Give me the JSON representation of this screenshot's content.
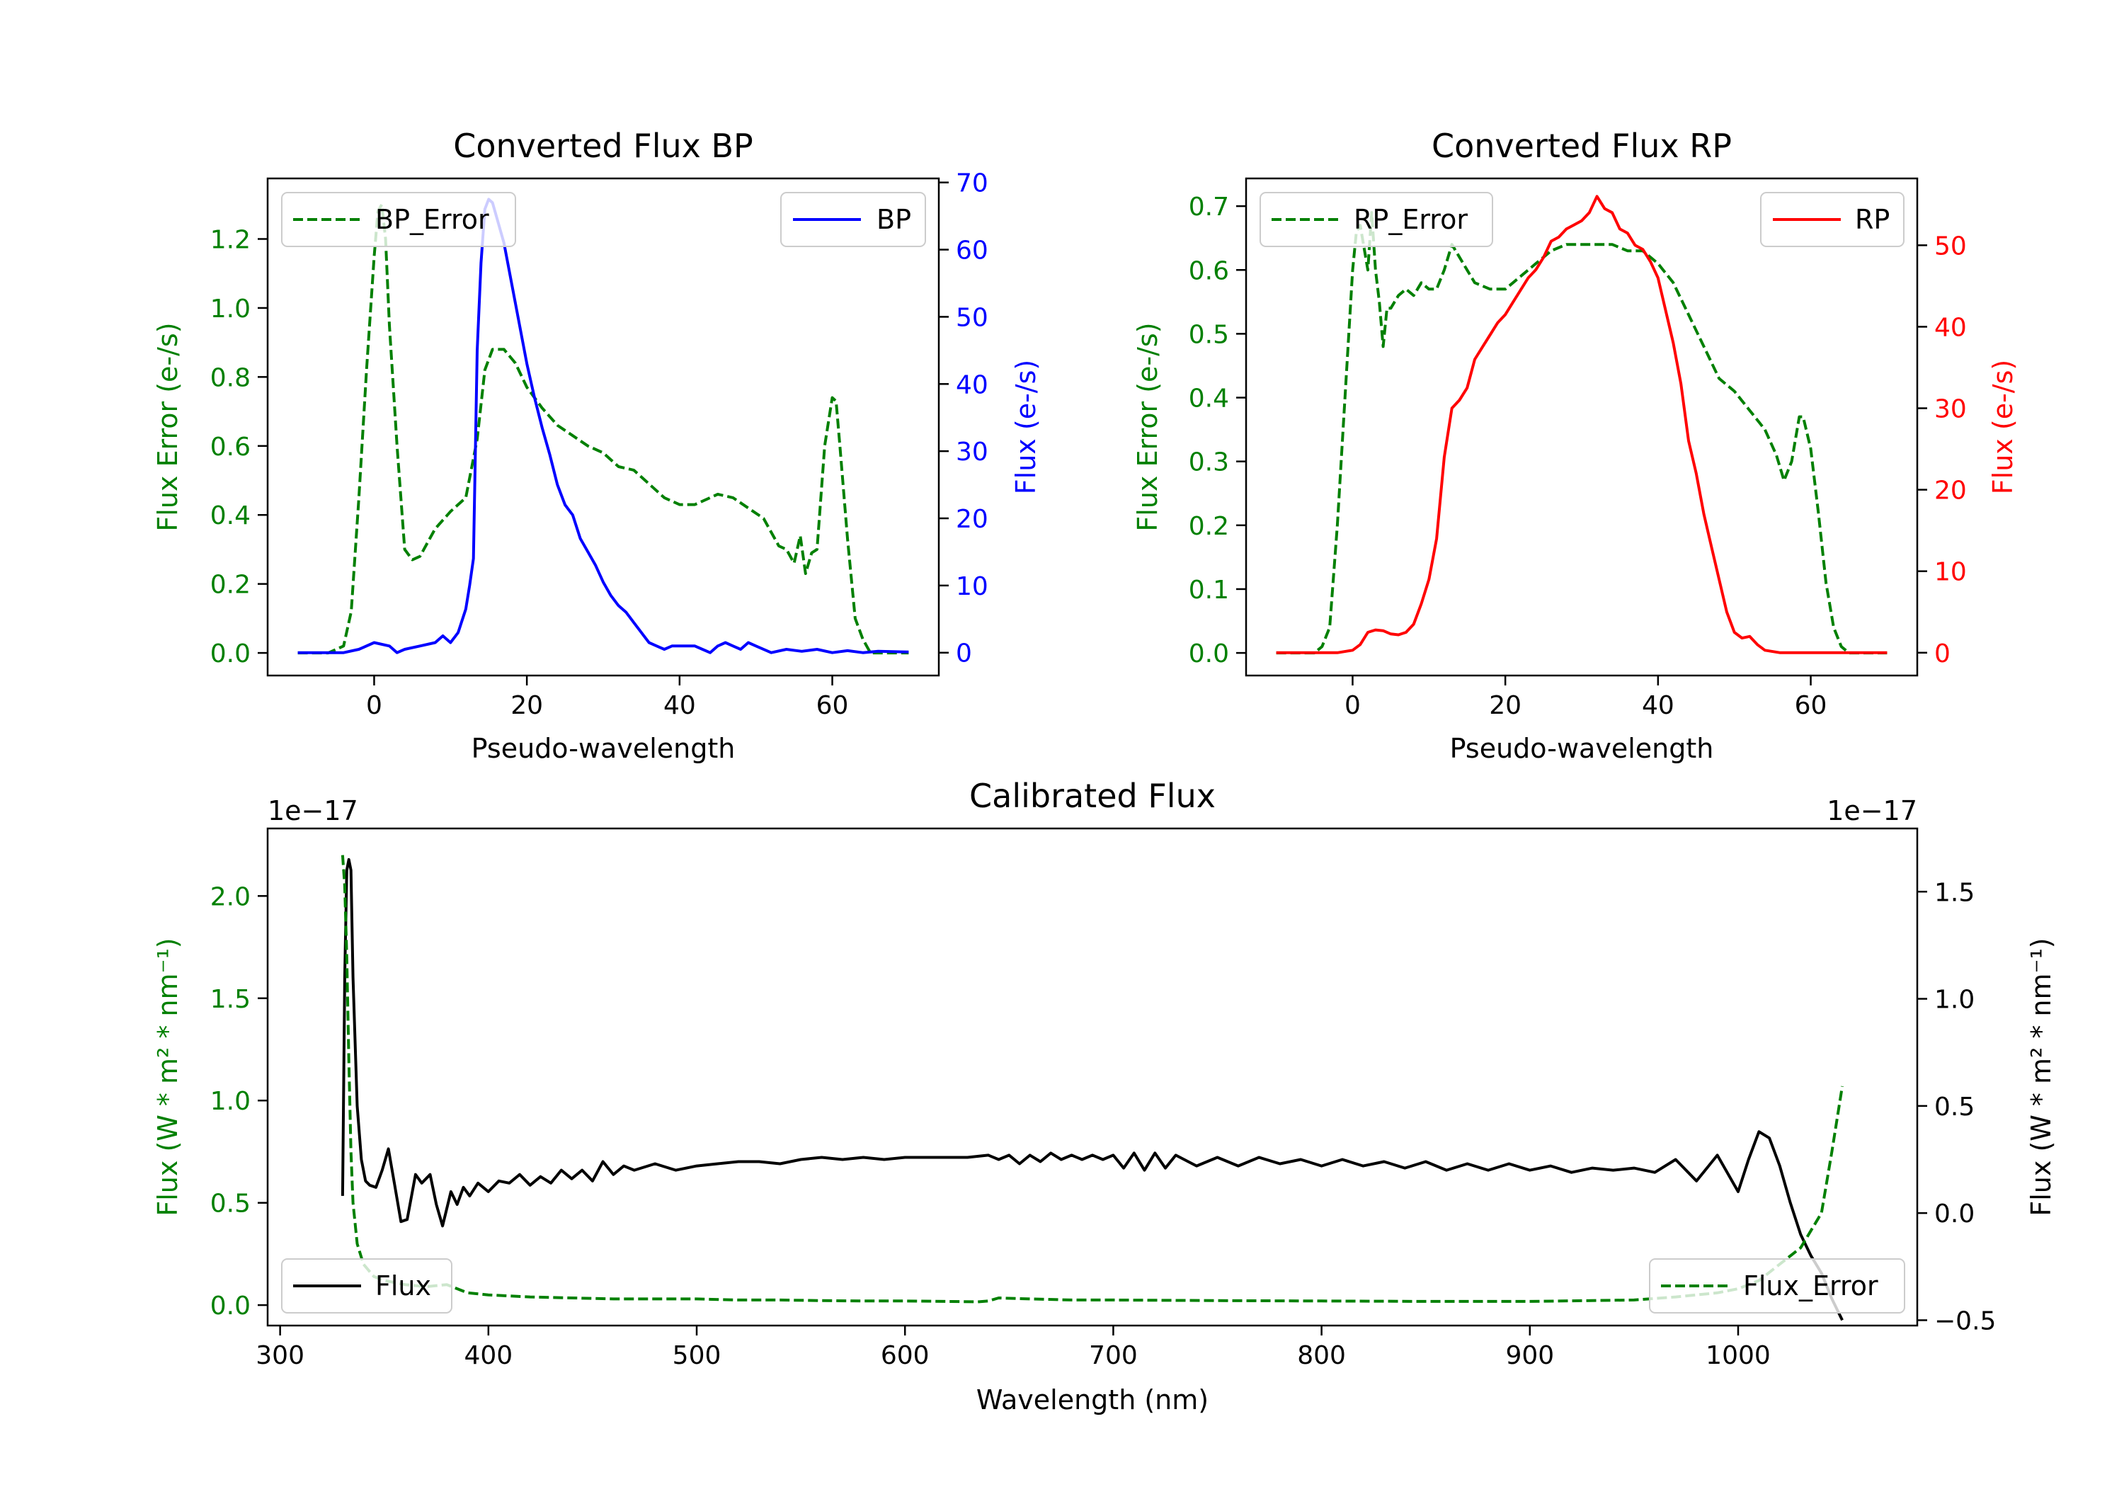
{
  "colors": {
    "bp": "#0000ff",
    "rp": "#ff0000",
    "error": "#008000",
    "flux": "#000000",
    "axis": "#000000"
  },
  "chart_data": [
    {
      "id": "bp",
      "type": "line",
      "title": "Converted Flux BP",
      "xlabel": "Pseudo-wavelength",
      "ylabel_left": "Flux Error (e-/s)",
      "ylabel_right": "Flux (e-/s)",
      "xlim": [
        -13.95,
        73.95
      ],
      "ylim_left": [
        -0.0655,
        1.3755
      ],
      "ylim_right": [
        -3.4,
        70.6
      ],
      "xticks": [
        0,
        20,
        40,
        60
      ],
      "yticks_left": [
        0.0,
        0.2,
        0.4,
        0.6,
        0.8,
        1.0,
        1.2
      ],
      "yticks_right": [
        0,
        10,
        20,
        30,
        40,
        50,
        60,
        70
      ],
      "series": [
        {
          "name": "BP_Error",
          "axis": "left",
          "style": "dashed",
          "color": "#008000",
          "x": [
            -10,
            -6,
            -4,
            -3,
            -2,
            -1,
            0,
            0.5,
            1,
            1.5,
            2,
            3,
            4,
            5,
            6,
            8,
            10,
            12,
            13.5,
            14.5,
            15.5,
            17,
            18.5,
            20,
            22,
            24,
            26,
            28,
            30,
            32,
            34,
            36,
            38,
            40,
            42,
            44,
            45,
            47,
            49,
            51,
            53,
            54,
            55,
            55.8,
            56.5,
            57.3,
            58,
            59,
            60,
            60.5,
            61,
            62,
            63,
            64,
            65,
            67,
            70
          ],
          "y": [
            0.0,
            0.0,
            0.02,
            0.12,
            0.45,
            0.82,
            1.15,
            1.28,
            1.3,
            1.2,
            0.95,
            0.6,
            0.3,
            0.27,
            0.28,
            0.36,
            0.41,
            0.45,
            0.62,
            0.82,
            0.88,
            0.88,
            0.84,
            0.77,
            0.71,
            0.66,
            0.63,
            0.6,
            0.58,
            0.54,
            0.53,
            0.49,
            0.45,
            0.43,
            0.43,
            0.45,
            0.46,
            0.45,
            0.42,
            0.39,
            0.31,
            0.3,
            0.26,
            0.34,
            0.23,
            0.29,
            0.3,
            0.6,
            0.74,
            0.73,
            0.6,
            0.33,
            0.1,
            0.04,
            0.0,
            0.0,
            0.0
          ]
        },
        {
          "name": "BP",
          "axis": "right",
          "style": "solid",
          "color": "#0000ff",
          "x": [
            -10,
            -4,
            -2,
            0,
            2,
            3,
            4,
            6,
            8,
            9,
            10,
            11,
            12,
            12.5,
            13,
            13.5,
            14,
            14.5,
            15,
            15.5,
            16,
            17,
            18,
            19,
            20,
            21,
            22,
            23,
            24,
            25,
            26,
            27,
            28,
            29,
            30,
            31,
            32,
            33,
            34,
            35,
            36,
            37,
            38,
            39,
            40,
            42,
            43,
            44,
            45,
            46,
            47,
            48,
            49,
            50,
            52,
            54,
            56,
            58,
            60,
            62,
            64,
            66,
            70
          ],
          "y": [
            0,
            0,
            0.5,
            1.5,
            1,
            0,
            0.5,
            1,
            1.5,
            2.5,
            1.5,
            3,
            6.5,
            10,
            14,
            45,
            58,
            66,
            67.5,
            67,
            65,
            61,
            55,
            49,
            43,
            38,
            33.5,
            29.5,
            25,
            22,
            20.5,
            17,
            15,
            13,
            10.5,
            8.5,
            7,
            6,
            4.5,
            3,
            1.5,
            1,
            0.5,
            1,
            1,
            1,
            0.5,
            0,
            1,
            1.5,
            1,
            0.5,
            1.5,
            1,
            0,
            0.5,
            0.2,
            0.5,
            0,
            0.3,
            0,
            0.2,
            0.1
          ]
        }
      ],
      "legend": [
        {
          "label": "BP_Error",
          "position": "upper-left"
        },
        {
          "label": "BP",
          "position": "upper-right"
        }
      ]
    },
    {
      "id": "rp",
      "type": "line",
      "title": "Converted Flux RP",
      "xlabel": "Pseudo-wavelength",
      "ylabel_left": "Flux Error (e-/s)",
      "ylabel_right": "Flux (e-/s)",
      "xlim": [
        -13.95,
        73.95
      ],
      "ylim_left": [
        -0.0354,
        0.7434
      ],
      "ylim_right": [
        -2.8,
        58.2
      ],
      "xticks": [
        0,
        20,
        40,
        60
      ],
      "yticks_left": [
        0.0,
        0.1,
        0.2,
        0.3,
        0.4,
        0.5,
        0.6,
        0.7
      ],
      "yticks_right": [
        0,
        10,
        20,
        30,
        40,
        50
      ],
      "series": [
        {
          "name": "RP_Error",
          "axis": "left",
          "style": "dashed",
          "color": "#008000",
          "x": [
            -10,
            -5,
            -4,
            -3,
            -2,
            -1,
            0,
            0.5,
            1,
            2,
            2.5,
            3,
            3.5,
            4,
            4.5,
            5,
            6,
            7,
            8,
            9,
            10,
            11,
            12,
            13,
            14,
            15,
            16,
            18,
            20,
            22,
            24,
            26,
            28,
            30,
            32,
            34,
            36,
            38,
            40,
            42,
            44,
            46,
            48,
            50,
            52,
            54,
            55.5,
            56.5,
            57.5,
            58.5,
            59,
            60,
            61,
            62,
            63,
            64,
            65,
            67,
            70
          ],
          "y": [
            0.0,
            0.0,
            0.01,
            0.04,
            0.2,
            0.4,
            0.6,
            0.66,
            0.67,
            0.6,
            0.69,
            0.6,
            0.55,
            0.48,
            0.54,
            0.54,
            0.56,
            0.57,
            0.56,
            0.58,
            0.57,
            0.57,
            0.6,
            0.64,
            0.62,
            0.6,
            0.58,
            0.57,
            0.57,
            0.59,
            0.61,
            0.63,
            0.64,
            0.64,
            0.64,
            0.64,
            0.63,
            0.63,
            0.61,
            0.58,
            0.53,
            0.48,
            0.43,
            0.41,
            0.38,
            0.35,
            0.31,
            0.27,
            0.3,
            0.37,
            0.37,
            0.32,
            0.22,
            0.11,
            0.04,
            0.01,
            0.0,
            0.0,
            0.0
          ]
        },
        {
          "name": "RP",
          "axis": "right",
          "style": "solid",
          "color": "#ff0000",
          "x": [
            -10,
            -2,
            0,
            1,
            2,
            3,
            4,
            5,
            6,
            7,
            8,
            9,
            10,
            11,
            12,
            13,
            14,
            15,
            16,
            17,
            18,
            19,
            20,
            21,
            22,
            23,
            24,
            25,
            26,
            27,
            28,
            29,
            30,
            31,
            32,
            33,
            34,
            35,
            36,
            37,
            38,
            39,
            40,
            41,
            42,
            43,
            44,
            45,
            46,
            47,
            48,
            49,
            50,
            51,
            52,
            53,
            54,
            56,
            58,
            60,
            62,
            64,
            66,
            70
          ],
          "y": [
            0,
            0,
            0.3,
            1,
            2.5,
            2.8,
            2.7,
            2.3,
            2.2,
            2.5,
            3.5,
            6,
            9,
            14,
            24,
            30,
            31,
            32.5,
            36,
            37.5,
            39,
            40.5,
            41.5,
            43,
            44.5,
            46,
            47,
            48.5,
            50.5,
            51,
            52,
            52.5,
            53,
            54,
            56,
            54.5,
            54,
            52,
            51.5,
            50,
            49.5,
            48,
            46,
            42,
            38,
            33,
            26,
            22,
            17,
            13,
            9,
            5,
            2.5,
            1.8,
            2,
            1,
            0.3,
            0,
            0,
            0,
            0,
            0,
            0,
            0
          ]
        }
      ],
      "legend": [
        {
          "label": "RP_Error",
          "position": "upper-left"
        },
        {
          "label": "RP",
          "position": "upper-right"
        }
      ]
    },
    {
      "id": "cal",
      "type": "line",
      "title": "Calibrated Flux",
      "xlabel": "Wavelength (nm)",
      "ylabel_left": "Flux (W * m² * nm⁻¹)",
      "ylabel_right": "Flux (W * m² * nm⁻¹)",
      "offset_left": "1e−17",
      "offset_right": "1e−17",
      "xlim": [
        294,
        1086
      ],
      "ylim_left": [
        -0.1,
        2.33
      ],
      "ylim_right": [
        -0.525,
        1.795
      ],
      "xticks": [
        300,
        400,
        500,
        600,
        700,
        800,
        900,
        1000
      ],
      "yticks_left": [
        0.0,
        0.5,
        1.0,
        1.5,
        2.0
      ],
      "yticks_right": [
        -0.5,
        0.0,
        0.5,
        1.0,
        1.5
      ],
      "series": [
        {
          "name": "Flux",
          "axis": "right",
          "style": "solid",
          "color": "#000000",
          "x": [
            330,
            331,
            332,
            333,
            334,
            335,
            337,
            339,
            341,
            343,
            346,
            349,
            352,
            355,
            358,
            361,
            365,
            368,
            372,
            375,
            378,
            382,
            385,
            388,
            391,
            395,
            400,
            405,
            410,
            415,
            420,
            425,
            430,
            435,
            440,
            445,
            450,
            455,
            460,
            465,
            470,
            480,
            490,
            500,
            510,
            520,
            530,
            540,
            550,
            560,
            570,
            580,
            590,
            600,
            610,
            620,
            630,
            640,
            645,
            650,
            655,
            660,
            665,
            670,
            675,
            680,
            685,
            690,
            695,
            700,
            705,
            710,
            715,
            720,
            725,
            730,
            740,
            750,
            760,
            770,
            780,
            790,
            800,
            810,
            820,
            830,
            840,
            850,
            860,
            870,
            880,
            890,
            900,
            910,
            920,
            930,
            940,
            950,
            960,
            970,
            980,
            990,
            1000,
            1005,
            1010,
            1015,
            1020,
            1025,
            1030,
            1035,
            1040,
            1045,
            1050
          ],
          "y": [
            0.08,
            1.1,
            1.6,
            1.65,
            1.6,
            1.1,
            0.5,
            0.25,
            0.15,
            0.13,
            0.12,
            0.2,
            0.3,
            0.13,
            -0.04,
            -0.03,
            0.18,
            0.14,
            0.18,
            0.04,
            -0.06,
            0.1,
            0.04,
            0.12,
            0.08,
            0.14,
            0.1,
            0.15,
            0.14,
            0.18,
            0.13,
            0.17,
            0.14,
            0.2,
            0.16,
            0.2,
            0.15,
            0.24,
            0.18,
            0.22,
            0.2,
            0.23,
            0.2,
            0.22,
            0.23,
            0.24,
            0.24,
            0.23,
            0.25,
            0.26,
            0.25,
            0.26,
            0.25,
            0.26,
            0.26,
            0.26,
            0.26,
            0.27,
            0.25,
            0.27,
            0.23,
            0.27,
            0.24,
            0.28,
            0.25,
            0.27,
            0.25,
            0.27,
            0.25,
            0.27,
            0.21,
            0.28,
            0.2,
            0.28,
            0.21,
            0.27,
            0.22,
            0.26,
            0.22,
            0.26,
            0.23,
            0.25,
            0.22,
            0.25,
            0.22,
            0.24,
            0.21,
            0.24,
            0.2,
            0.23,
            0.2,
            0.23,
            0.2,
            0.22,
            0.19,
            0.21,
            0.2,
            0.21,
            0.19,
            0.25,
            0.15,
            0.27,
            0.1,
            0.25,
            0.38,
            0.35,
            0.22,
            0.05,
            -0.1,
            -0.2,
            -0.28,
            -0.4,
            -0.5
          ]
        },
        {
          "name": "Flux_Error",
          "axis": "left",
          "style": "dashed",
          "color": "#008000",
          "x": [
            330,
            331,
            332,
            333,
            334,
            335,
            337,
            340,
            345,
            350,
            360,
            370,
            380,
            390,
            400,
            420,
            440,
            460,
            480,
            500,
            520,
            540,
            560,
            580,
            600,
            620,
            635,
            640,
            645,
            660,
            680,
            700,
            750,
            800,
            850,
            900,
            950,
            970,
            990,
            1000,
            1010,
            1020,
            1030,
            1040,
            1045,
            1050
          ],
          "y": [
            2.2,
            2.05,
            1.7,
            1.2,
            0.75,
            0.5,
            0.3,
            0.2,
            0.14,
            0.12,
            0.1,
            0.09,
            0.1,
            0.06,
            0.05,
            0.04,
            0.035,
            0.03,
            0.03,
            0.03,
            0.025,
            0.025,
            0.022,
            0.02,
            0.02,
            0.018,
            0.016,
            0.02,
            0.035,
            0.03,
            0.025,
            0.025,
            0.022,
            0.02,
            0.018,
            0.018,
            0.025,
            0.04,
            0.06,
            0.08,
            0.12,
            0.2,
            0.28,
            0.45,
            0.75,
            1.07
          ]
        }
      ],
      "legend": [
        {
          "label": "Flux",
          "position": "lower-left"
        },
        {
          "label": "Flux_Error",
          "position": "lower-right"
        }
      ]
    }
  ]
}
